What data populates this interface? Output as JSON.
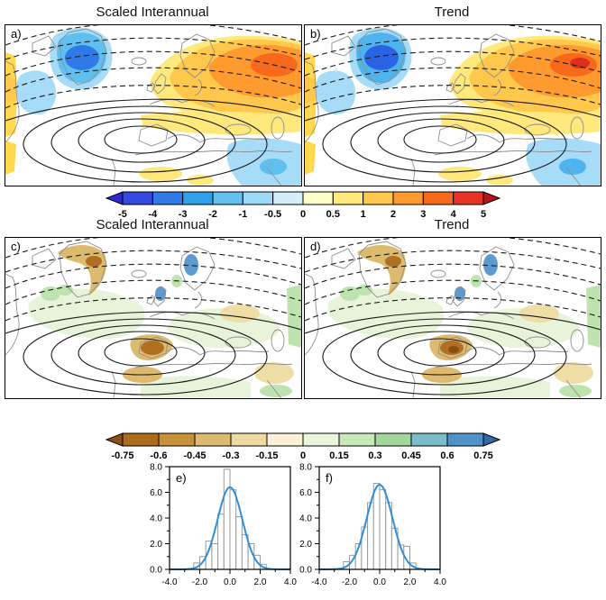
{
  "row1": {
    "left_title": "Scaled Interannual",
    "right_title": "Trend"
  },
  "row2": {
    "left_title": "Scaled Interannual",
    "right_title": "Trend"
  },
  "panels": {
    "a": {
      "label": "a)"
    },
    "b": {
      "label": "b)"
    },
    "c": {
      "label": "c)"
    },
    "d": {
      "label": "d)"
    },
    "e": {
      "label": "e)"
    },
    "f": {
      "label": "f)"
    }
  },
  "colorbars": [
    {
      "name": "temperature-anomaly",
      "tick_labels": [
        "-5",
        "-4",
        "-3",
        "-2",
        "-1",
        "-0.5",
        "0",
        "0.5",
        "1",
        "2",
        "3",
        "4",
        "5"
      ],
      "cell_colors": [
        "#3648e0",
        "#2f7ae8",
        "#31a0ea",
        "#62c1ef",
        "#9cd9f6",
        "#d2eefb",
        "#ffffc9",
        "#ffe97d",
        "#ffc84d",
        "#ff9b2e",
        "#f9691b",
        "#e63323"
      ],
      "arrow_left_color": "#2b2bd0",
      "arrow_right_color": "#b5121b"
    },
    {
      "name": "precip-anomaly",
      "tick_labels": [
        "-0.75",
        "-0.6",
        "-0.45",
        "-0.3",
        "-0.15",
        "0",
        "0.15",
        "0.3",
        "0.45",
        "0.6",
        "0.75"
      ],
      "cell_colors": [
        "#ad6c1c",
        "#c8913a",
        "#ddba6f",
        "#eeda9f",
        "#f9f0d7",
        "#eaf6dc",
        "#c9e8b8",
        "#a3d69a",
        "#7bbcc9",
        "#4f93c8"
      ],
      "arrow_left_color": "#8a4e10",
      "arrow_right_color": "#2f6aa8"
    }
  ],
  "map_style": {
    "contour_color": "#1a1a1a",
    "coast_color": "#8f8f8f"
  },
  "map_palettes": {
    "a": {
      "edge_warm": "#ffd84d",
      "cold_light": "#a6dcf7",
      "cold_mid": "#5fc0ef",
      "cold_core": "#2f7ae8",
      "warm_light": "#ffe97d",
      "warm_mid": "#ffc84d",
      "warm_core": "#ff9b2e",
      "warm_hot": "#f9691b"
    },
    "b": {
      "edge_warm": "#ffd84d",
      "cold_light": "#a6dcf7",
      "cold_mid": "#4fb4ee",
      "cold_core": "#2a63e4",
      "warm_light": "#ffe97d",
      "warm_mid": "#ffc84d",
      "warm_core": "#ff9b2e",
      "warm_hot": "#f9691b",
      "warm_extreme": "#e02e1c"
    },
    "c": {
      "wet_light": "#e7f4d9",
      "wet_mid": "#bfe3ae",
      "wet_core": "#5b9bd1",
      "dry_light": "#efdda6",
      "dry_mid": "#dcba6e",
      "dry_core": "#b07022"
    },
    "d": {
      "wet_light": "#e7f4d9",
      "wet_mid": "#bfe3ae",
      "wet_core": "#5b9bd1",
      "dry_light": "#efdda6",
      "dry_mid": "#dcba6e",
      "dry_core": "#b07022",
      "dry_extreme": "#8a4e10"
    }
  },
  "hist_style": {
    "curve_color": "#2e8fd8",
    "bar_outline": "#9a9a9a",
    "bar_fill": "#ffffff"
  },
  "chart_data": [
    {
      "type": "heatmap",
      "panel": "a",
      "title": "Scaled Interannual",
      "content": "filled anomaly shading with solid and dashed overlaid contours",
      "colorbar_ticks": [
        -5,
        -4,
        -3,
        -2,
        -1,
        -0.5,
        0,
        0.5,
        1,
        2,
        3,
        4,
        5
      ]
    },
    {
      "type": "heatmap",
      "panel": "b",
      "title": "Trend",
      "content": "filled anomaly shading with solid and dashed overlaid contours",
      "colorbar_ticks": [
        -5,
        -4,
        -3,
        -2,
        -1,
        -0.5,
        0,
        0.5,
        1,
        2,
        3,
        4,
        5
      ]
    },
    {
      "type": "heatmap",
      "panel": "c",
      "title": "Scaled Interannual",
      "content": "filled anomaly shading with solid and dashed overlaid contours",
      "colorbar_ticks": [
        -0.75,
        -0.6,
        -0.45,
        -0.3,
        -0.15,
        0,
        0.15,
        0.3,
        0.45,
        0.6,
        0.75
      ]
    },
    {
      "type": "heatmap",
      "panel": "d",
      "title": "Trend",
      "content": "filled anomaly shading with solid and dashed overlaid contours",
      "colorbar_ticks": [
        -0.75,
        -0.6,
        -0.45,
        -0.3,
        -0.15,
        0,
        0.15,
        0.3,
        0.45,
        0.6,
        0.75
      ]
    },
    {
      "type": "bar",
      "panel": "e",
      "xlim": [
        -4,
        4
      ],
      "ylim": [
        0,
        8
      ],
      "bin_width": 0.4,
      "x_tick_labels": [
        "-4.0",
        "-2.0",
        "0.0",
        "2.0",
        "4.0"
      ],
      "y_tick_labels": [
        "0.0",
        "2.0",
        "4.0",
        "6.0",
        "8.0"
      ],
      "bin_centers": [
        -2.2,
        -1.8,
        -1.4,
        -1.0,
        -0.6,
        -0.2,
        0.2,
        0.6,
        1.0,
        1.4,
        1.8,
        2.2
      ],
      "values": [
        0.5,
        1.0,
        2.2,
        2.0,
        4.3,
        7.8,
        6.2,
        4.1,
        2.7,
        2.0,
        1.1,
        0.4
      ],
      "curve": {
        "type": "gaussian",
        "amplitude": 6.4,
        "mean": 0,
        "sigma": 0.82
      }
    },
    {
      "type": "bar",
      "panel": "f",
      "xlim": [
        -4,
        4
      ],
      "ylim": [
        0,
        8
      ],
      "bin_width": 0.4,
      "x_tick_labels": [
        "-4.0",
        "-2.0",
        "0.0",
        "2.0",
        "4.0"
      ],
      "y_tick_labels": [
        "0.0",
        "2.0",
        "4.0",
        "6.0",
        "8.0"
      ],
      "bin_centers": [
        -2.2,
        -1.8,
        -1.4,
        -1.0,
        -0.6,
        -0.2,
        0.2,
        0.6,
        1.0,
        1.4,
        1.8,
        2.2
      ],
      "values": [
        0.6,
        1.1,
        2.0,
        3.3,
        5.2,
        6.7,
        6.2,
        5.2,
        3.2,
        1.9,
        1.8,
        0.5
      ],
      "curve": {
        "type": "gaussian",
        "amplitude": 6.6,
        "mean": 0,
        "sigma": 0.85
      }
    }
  ]
}
